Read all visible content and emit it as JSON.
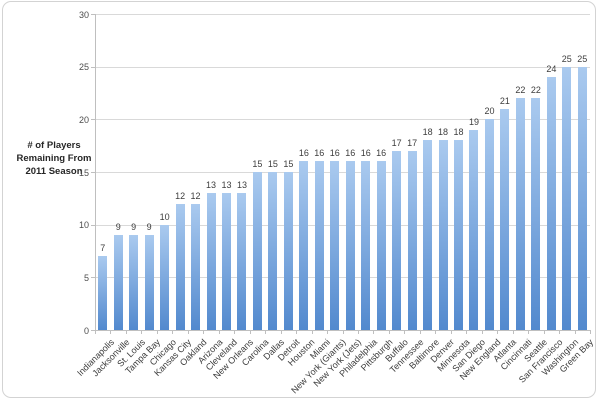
{
  "chart_data": {
    "type": "bar",
    "title": "",
    "ylabel_lines": [
      "# of Players",
      "Remaining From",
      "2011 Season"
    ],
    "categories": [
      "Indianapolis",
      "Jacksonville",
      "St. Louis",
      "Tampa Bay",
      "Chicago",
      "Kansas City",
      "Oakland",
      "Arizona",
      "Cleveland",
      "New Orleans",
      "Carolina",
      "Dallas",
      "Detroit",
      "Houston",
      "Miami",
      "New York (Giants)",
      "New York (Jets)",
      "Philadelphia",
      "Pittsburgh",
      "Buffalo",
      "Tennessee",
      "Baltimore",
      "Denver",
      "Minnesota",
      "San Diego",
      "New England",
      "Atlanta",
      "Cincinnati",
      "Seattle",
      "San Francisco",
      "Washington",
      "Green Bay"
    ],
    "values": [
      7,
      9,
      9,
      9,
      10,
      12,
      12,
      13,
      13,
      13,
      15,
      15,
      15,
      16,
      16,
      16,
      16,
      16,
      16,
      17,
      17,
      18,
      18,
      18,
      19,
      20,
      21,
      22,
      22,
      24,
      25,
      25
    ],
    "ylim": [
      0,
      30
    ],
    "yticks": [
      0,
      5,
      10,
      15,
      20,
      25,
      30
    ],
    "grid": true,
    "legend": "none",
    "bar_color_top": "#aacaef",
    "bar_color_bottom": "#5289ce",
    "gridline_color": "#d9d9d9",
    "axis_color": "#bfbfbf"
  }
}
